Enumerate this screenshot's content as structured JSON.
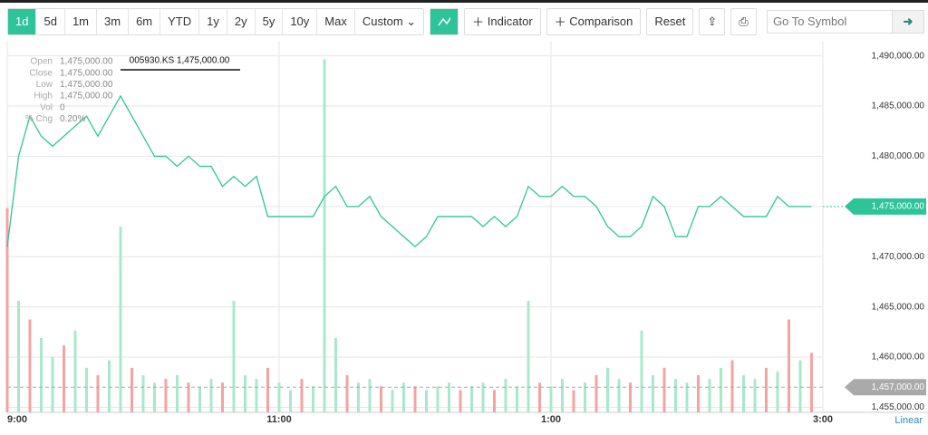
{
  "toolbar": {
    "ranges": [
      "1d",
      "5d",
      "1m",
      "3m",
      "6m",
      "YTD",
      "1y",
      "2y",
      "5y",
      "10y",
      "Max"
    ],
    "custom": "Custom",
    "indicator": "Indicator",
    "comparison": "Comparison",
    "reset": "Reset",
    "search": "Go To Symbol"
  },
  "chart_data": {
    "type": "line",
    "categories": [
      "9:00",
      null,
      null,
      null,
      null,
      null,
      null,
      null,
      null,
      null,
      null,
      null,
      null,
      null,
      null,
      null,
      null,
      null,
      null,
      null,
      null,
      null,
      null,
      null,
      "11:00",
      null,
      null,
      null,
      null,
      null,
      null,
      null,
      null,
      null,
      null,
      null,
      null,
      null,
      null,
      null,
      null,
      null,
      null,
      null,
      null,
      null,
      null,
      null,
      "1:00",
      null,
      null,
      null,
      null,
      null,
      null,
      null,
      null,
      null,
      null,
      null,
      null,
      null,
      null,
      null,
      null,
      null,
      null,
      null,
      null,
      null,
      null,
      null,
      "3:00"
    ],
    "series": [
      {
        "name": "005930.KS",
        "color": "#2ec49a",
        "values": [
          1471000,
          1480000,
          1484000,
          1482000,
          1481000,
          1482000,
          1483000,
          1484000,
          1482000,
          1484000,
          1486000,
          1484000,
          1482000,
          1480000,
          1480000,
          1479000,
          1480000,
          1479000,
          1479000,
          1477000,
          1478000,
          1477000,
          1478000,
          1474000,
          1474000,
          1474000,
          1474000,
          1474000,
          1476000,
          1477000,
          1475000,
          1475000,
          1476000,
          1474000,
          1473000,
          1472000,
          1471000,
          1472000,
          1474000,
          1474000,
          1474000,
          1474000,
          1473000,
          1474000,
          1473000,
          1474000,
          1477000,
          1476000,
          1476000,
          1477000,
          1476000,
          1476000,
          1475000,
          1473000,
          1472000,
          1472000,
          1473000,
          1476000,
          1475000,
          1472000,
          1472000,
          1475000,
          1475000,
          1476000,
          1475000,
          1474000,
          1474000,
          1474000,
          1476000,
          1475000,
          1475000,
          1475000,
          null
        ]
      }
    ],
    "volume": {
      "values": [
        55,
        30,
        25,
        20,
        15,
        18,
        22,
        12,
        10,
        14,
        50,
        12,
        10,
        8,
        9,
        10,
        8,
        7,
        9,
        8,
        30,
        10,
        9,
        12,
        8,
        6,
        9,
        7,
        95,
        20,
        10,
        8,
        9,
        7,
        6,
        8,
        7,
        6,
        7,
        8,
        6,
        7,
        8,
        6,
        9,
        7,
        30,
        8,
        7,
        9,
        6,
        8,
        10,
        12,
        9,
        8,
        22,
        10,
        12,
        9,
        8,
        10,
        9,
        12,
        14,
        10,
        9,
        12,
        11,
        25,
        14,
        16
      ],
      "colors": [
        "#f4a3a3",
        "#a8e8cc",
        "#f4a3a3",
        "#a8e8cc",
        "#a8e8cc",
        "#f4a3a3",
        "#a8e8cc",
        "#a8e8cc",
        "#f4a3a3",
        "#a8e8cc",
        "#a8e8cc",
        "#f4a3a3",
        "#a8e8cc",
        "#a8e8cc",
        "#f4a3a3",
        "#a8e8cc",
        "#f4a3a3",
        "#a8e8cc",
        "#a8e8cc",
        "#f4a3a3",
        "#a8e8cc",
        "#a8e8cc",
        "#a8e8cc",
        "#f4a3a3",
        "#a8e8cc",
        "#a8e8cc",
        "#f4a3a3",
        "#a8e8cc",
        "#a8e8cc",
        "#a8e8cc",
        "#f4a3a3",
        "#a8e8cc",
        "#a8e8cc",
        "#f4a3a3",
        "#a8e8cc",
        "#a8e8cc",
        "#f4a3a3",
        "#a8e8cc",
        "#a8e8cc",
        "#a8e8cc",
        "#f4a3a3",
        "#a8e8cc",
        "#a8e8cc",
        "#f4a3a3",
        "#a8e8cc",
        "#a8e8cc",
        "#a8e8cc",
        "#f4a3a3",
        "#a8e8cc",
        "#a8e8cc",
        "#f4a3a3",
        "#a8e8cc",
        "#f4a3a3",
        "#a8e8cc",
        "#a8e8cc",
        "#f4a3a3",
        "#a8e8cc",
        "#a8e8cc",
        "#f4a3a3",
        "#a8e8cc",
        "#a8e8cc",
        "#f4a3a3",
        "#a8e8cc",
        "#a8e8cc",
        "#f4a3a3",
        "#a8e8cc",
        "#a8e8cc",
        "#f4a3a3",
        "#a8e8cc",
        "#f4a3a3",
        "#a8e8cc",
        "#f4a3a3"
      ],
      "y2lim": [
        0,
        100
      ]
    },
    "ylim": [
      1454500,
      1491500
    ],
    "yticks": [
      {
        "value": 1455000,
        "label": "1,455,000.00"
      },
      {
        "value": 1460000,
        "label": "1,460,000.00"
      },
      {
        "value": 1465000,
        "label": "1,465,000.00"
      },
      {
        "value": 1470000,
        "label": "1,470,000.00"
      },
      {
        "value": 1475000,
        "label": "1,475,000.00"
      },
      {
        "value": 1480000,
        "label": "1,480,000.00"
      },
      {
        "value": 1485000,
        "label": "1,485,000.00"
      },
      {
        "value": 1490000,
        "label": "1,490,000.00"
      }
    ],
    "grid": true,
    "price_marker": {
      "value": 1475000,
      "label": "1,475,000.00",
      "color": "#2ec49a"
    },
    "reference_line": {
      "value": 1457000,
      "label": "1,457,000.00",
      "color": "#aaaaaa"
    },
    "tooltip": "005930.KS 1,475,000.00",
    "hover_box": [
      {
        "label": "Open",
        "value": "1,475,000.00"
      },
      {
        "label": "Close",
        "value": "1,475,000.00"
      },
      {
        "label": "Low",
        "value": "1,475,000.00"
      },
      {
        "label": "High",
        "value": "1,475,000.00"
      },
      {
        "label": "Vol",
        "value": "0"
      },
      {
        "label": "% Chg",
        "value": "0.20%"
      }
    ],
    "scale": "Linear"
  }
}
